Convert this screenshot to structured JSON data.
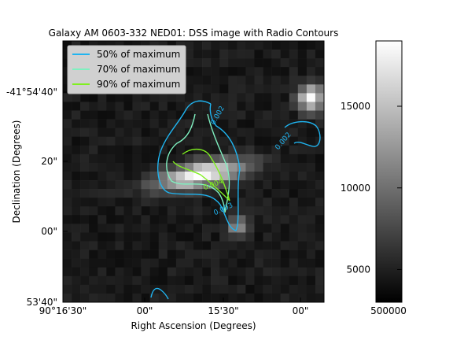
{
  "chart_data": {
    "type": "heatmap",
    "title": "Galaxy AM 0603-332 NED01: DSS image with Radio Contours",
    "xlabel": "Right Ascension (Degrees)",
    "ylabel": "Declination (Degrees)",
    "x_ticks": [
      "90°16'30\"",
      "00\"",
      "15'30\"",
      "00\""
    ],
    "y_ticks": [
      "-41°54'40\"",
      "20\"",
      "00\"",
      "53'40\""
    ],
    "legend": {
      "placement": "top-left",
      "entries": [
        {
          "label": "50% of maximum",
          "color": "#1fb4f0"
        },
        {
          "label": "70% of maximum",
          "color": "#7ff0c0"
        },
        {
          "label": "90% of maximum",
          "color": "#80f020"
        }
      ]
    },
    "colorbar": {
      "ticks": [
        "15000",
        "10000",
        "5000"
      ],
      "bottom_label": "500000",
      "range": [
        3000,
        19000
      ],
      "colormap": "gray"
    },
    "contour_labels": [
      "0.002",
      "0.002",
      "0.004",
      "0.003"
    ],
    "grid": false
  }
}
